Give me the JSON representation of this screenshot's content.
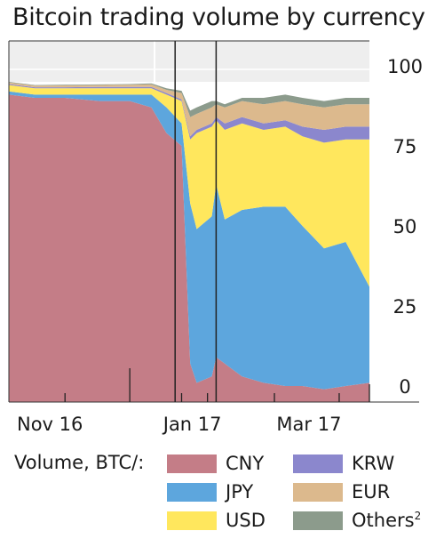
{
  "title": "Bitcoin trading volume by currency",
  "chart_data": {
    "type": "area",
    "stacked": true,
    "title": "Bitcoin trading volume by currency",
    "x_tick_labels": [
      "Nov 16",
      "Jan 17",
      "Mar 17"
    ],
    "x_range": [
      "2016-10-20",
      "2017-04-05"
    ],
    "y_ticks": [
      0,
      25,
      50,
      75,
      100
    ],
    "ylim": [
      0,
      100
    ],
    "y_axis_side": "right",
    "grid": false,
    "legend_title": "Volume, BTC/:",
    "legend_position": "bottom",
    "colors": {
      "CNY": "#c47d87",
      "JPY": "#5da6dd",
      "USD": "#ffe75d",
      "KRW": "#8b87cd",
      "EUR": "#dcb98d",
      "Others": "#8c9b8c"
    },
    "legend": [
      {
        "key": "CNY",
        "label": "CNY"
      },
      {
        "key": "JPY",
        "label": "JPY"
      },
      {
        "key": "USD",
        "label": "USD"
      },
      {
        "key": "KRW",
        "label": "KRW"
      },
      {
        "key": "EUR",
        "label": "EUR"
      },
      {
        "key": "Others",
        "label": "Others",
        "footnote": "2"
      }
    ],
    "vertical_lines": [
      "2017-01-05",
      "2017-01-24"
    ],
    "x": [
      "2016-10-20",
      "2016-11-01",
      "2016-11-15",
      "2016-12-01",
      "2016-12-15",
      "2016-12-25",
      "2017-01-01",
      "2017-01-08",
      "2017-01-12",
      "2017-01-15",
      "2017-01-22",
      "2017-01-24",
      "2017-01-28",
      "2017-02-05",
      "2017-02-15",
      "2017-02-25",
      "2017-03-05",
      "2017-03-15",
      "2017-03-25",
      "2017-04-05"
    ],
    "series": [
      {
        "name": "CNY",
        "values": [
          96,
          95,
          95,
          94,
          94,
          92,
          84,
          80,
          12,
          6,
          8,
          14,
          12,
          8,
          6,
          5,
          5,
          4,
          5,
          6
        ]
      },
      {
        "name": "JPY",
        "values": [
          1,
          1,
          1,
          2,
          2,
          4,
          8,
          7,
          50,
          48,
          50,
          54,
          45,
          52,
          55,
          56,
          50,
          44,
          45,
          30
        ]
      },
      {
        "name": "USD",
        "values": [
          2,
          2,
          2,
          2,
          2,
          2,
          4,
          7,
          20,
          30,
          28,
          20,
          28,
          27,
          24,
          25,
          28,
          33,
          32,
          46
        ]
      },
      {
        "name": "KRW",
        "values": [
          0.3,
          0.3,
          0.3,
          0.4,
          0.4,
          0.4,
          0.5,
          0.5,
          1,
          1,
          1,
          1,
          2,
          2,
          2,
          2,
          3,
          4,
          4,
          4
        ]
      },
      {
        "name": "EUR",
        "values": [
          0.5,
          0.5,
          0.6,
          0.6,
          0.7,
          0.8,
          1,
          2,
          6,
          5,
          5,
          4,
          5,
          5,
          6,
          6,
          7,
          7,
          7,
          7
        ]
      },
      {
        "name": "Others",
        "values": [
          0.2,
          0.2,
          0.2,
          0.2,
          0.2,
          0.3,
          0.5,
          0.7,
          2,
          2,
          2,
          1,
          1,
          1,
          2,
          2,
          2,
          2,
          2,
          2
        ]
      }
    ]
  }
}
